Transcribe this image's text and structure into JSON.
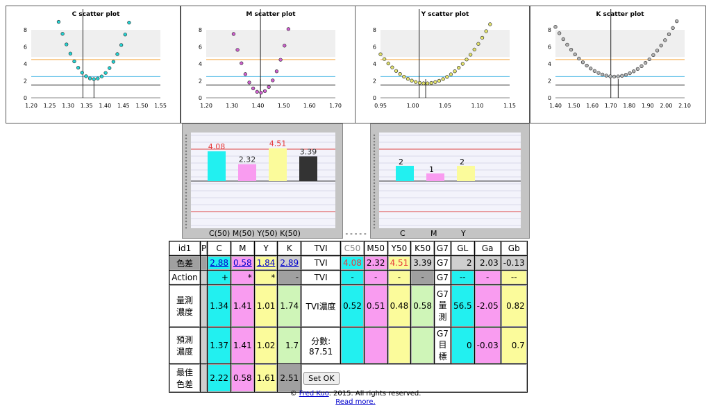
{
  "scatter_plots": [
    {
      "title": "C scatter plot",
      "xticks": [
        "1.20",
        "1.25",
        "1.30",
        "1.35",
        "1.40",
        "1.45",
        "1.50",
        "1.55"
      ],
      "xlim": [
        1.2,
        1.55
      ],
      "min_x": 1.37,
      "vline1": 1.34,
      "vline2": 1.37,
      "color": "#22d6d6",
      "yticks": [
        "0",
        "2",
        "4",
        "6",
        "8"
      ]
    },
    {
      "title": "M scatter plot",
      "xticks": [
        "1.20",
        "1.30",
        "1.40",
        "1.50",
        "1.60",
        "1.70"
      ],
      "xlim": [
        1.2,
        1.7
      ],
      "min_x": 1.41,
      "vline1": 1.41,
      "vline2": 1.41,
      "color": "#d15fd1",
      "yticks": [
        "0",
        "2",
        "4",
        "6",
        "8"
      ]
    },
    {
      "title": "Y scatter plot",
      "xticks": [
        "0.95",
        "1.00",
        "1.05",
        "1.10",
        "1.15"
      ],
      "xlim": [
        0.95,
        1.15
      ],
      "min_x": 1.02,
      "vline1": 1.01,
      "vline2": 1.02,
      "color": "#e3e36b",
      "yticks": [
        "0",
        "2",
        "4",
        "6",
        "8"
      ]
    },
    {
      "title": "K scatter plot",
      "xticks": [
        "1.40",
        "1.50",
        "1.60",
        "1.70",
        "1.80",
        "1.90",
        "2.00",
        "2.10"
      ],
      "xlim": [
        1.4,
        2.1
      ],
      "min_x": 1.72,
      "vline1": 1.7,
      "vline2": 1.74,
      "color": "#b3b3b3",
      "yticks": [
        "0",
        "2",
        "4",
        "6",
        "8"
      ]
    }
  ],
  "bar1": {
    "values": [
      4.08,
      2.32,
      4.51,
      3.39
    ],
    "labels": [
      "4.08",
      "2.32",
      "4.51",
      "3.39"
    ],
    "label_colors": [
      "#e53b3b",
      "#333333",
      "#e53b3b",
      "#333333"
    ],
    "colors": [
      "#22f0f0",
      "#f99cf0",
      "#fbfb9b",
      "#333333"
    ],
    "axis_label": "C(50) M(50) Y(50) K(50)"
  },
  "separator": "-----",
  "bar2": {
    "values": [
      2,
      1,
      2
    ],
    "labels": [
      "2",
      "1",
      "2"
    ],
    "colors": [
      "#22f0f0",
      "#f99cf0",
      "#fbfb9b"
    ],
    "axis_labels": [
      "C",
      "M",
      "Y"
    ]
  },
  "table": {
    "header": [
      "id1",
      "P",
      "C",
      "M",
      "Y",
      "K",
      "TVI",
      "C50",
      "M50",
      "Y50",
      "K50",
      "G7",
      "GL",
      "Ga",
      "Gb"
    ],
    "row_diff": {
      "label": "色差",
      "c": "2.88",
      "m": "0.58",
      "y": "1.84",
      "k": "2.89",
      "tvi": "TVI",
      "c50": "4.08",
      "m50": "2.32",
      "y50": "4.51",
      "k50": "3.39",
      "g7": "G7",
      "gl": "2",
      "ga": "2.03",
      "gb": "-0.13"
    },
    "row_action": {
      "label": "Action",
      "c": "+",
      "m": "*",
      "y": "*",
      "k": "-",
      "tvi": "TVI",
      "c50": "-",
      "m50": "-",
      "y50": "-",
      "k50": "-",
      "g7": "G7",
      "gl": "--",
      "ga": "-",
      "gb": "--"
    },
    "row_measured": {
      "label": "量測濃度",
      "c": "1.34",
      "m": "1.41",
      "y": "1.01",
      "k": "1.74",
      "tvi": "TVI濃度",
      "c50": "0.52",
      "m50": "0.51",
      "y50": "0.48",
      "k50": "0.58",
      "g7": "G7量測",
      "gl": "56.5",
      "ga": "-2.05",
      "gb": "0.82"
    },
    "row_predicted": {
      "label": "預測濃度",
      "c": "1.37",
      "m": "1.41",
      "y": "1.02",
      "k": "1.7",
      "tvi": "分數: 87.51",
      "g7": "G7目標",
      "gl": "0",
      "ga": "-0.03",
      "gb": "0.7"
    },
    "row_best": {
      "label": "最佳色差",
      "c": "2.22",
      "m": "0.58",
      "y": "1.61",
      "k": "2.51",
      "button": "Set OK"
    }
  },
  "footer": {
    "copyright_symbol": "©",
    "author": "Fred Kuo",
    "rights": ". 2015. All rights reserved.",
    "read_more": "Read more."
  }
}
